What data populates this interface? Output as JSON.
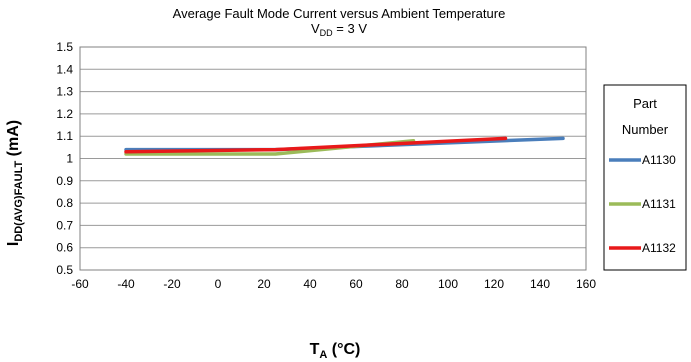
{
  "chart_data": {
    "type": "line",
    "title": "Average Fault Mode Current versus Ambient Temperature",
    "subtitle": {
      "main": "V",
      "sub": "DD",
      "rest": " = 3 V"
    },
    "xlabel": {
      "main": "T",
      "sub": "A",
      "rest": " (°C)"
    },
    "ylabel": {
      "main": "I",
      "sub": "DD(AVG)FAULT",
      "rest": " (mA)"
    },
    "xlim": [
      -60,
      160
    ],
    "ylim": [
      0.5,
      1.5
    ],
    "x_ticks": [
      -60,
      -40,
      -20,
      0,
      20,
      40,
      60,
      80,
      100,
      120,
      140,
      160
    ],
    "y_ticks": [
      0.5,
      0.6,
      0.7,
      0.8,
      0.9,
      1,
      1.1,
      1.2,
      1.3,
      1.4,
      1.5
    ],
    "x_tick_labels": [
      "-60",
      "-40",
      "-20",
      "0",
      "20",
      "40",
      "60",
      "80",
      "100",
      "120",
      "140",
      "160"
    ],
    "y_tick_labels": [
      "0.5",
      "0.6",
      "0.7",
      "0.8",
      "0.9",
      "1",
      "1.1",
      "1.2",
      "1.3",
      "1.4",
      "1.5"
    ],
    "grid": "horizontal",
    "legend": {
      "title_line1": "Part",
      "title_line2": "Number",
      "placement": "right"
    },
    "series": [
      {
        "name": "A1130",
        "color": "#4a7ebb",
        "x": [
          -40,
          25,
          150
        ],
        "y": [
          1.04,
          1.04,
          1.09
        ]
      },
      {
        "name": "A1131",
        "color": "#9bbb59",
        "x": [
          -40,
          25,
          85
        ],
        "y": [
          1.02,
          1.02,
          1.08
        ]
      },
      {
        "name": "A1132",
        "color": "#e8191a",
        "x": [
          -40,
          25,
          125
        ],
        "y": [
          1.03,
          1.04,
          1.09
        ]
      }
    ]
  }
}
